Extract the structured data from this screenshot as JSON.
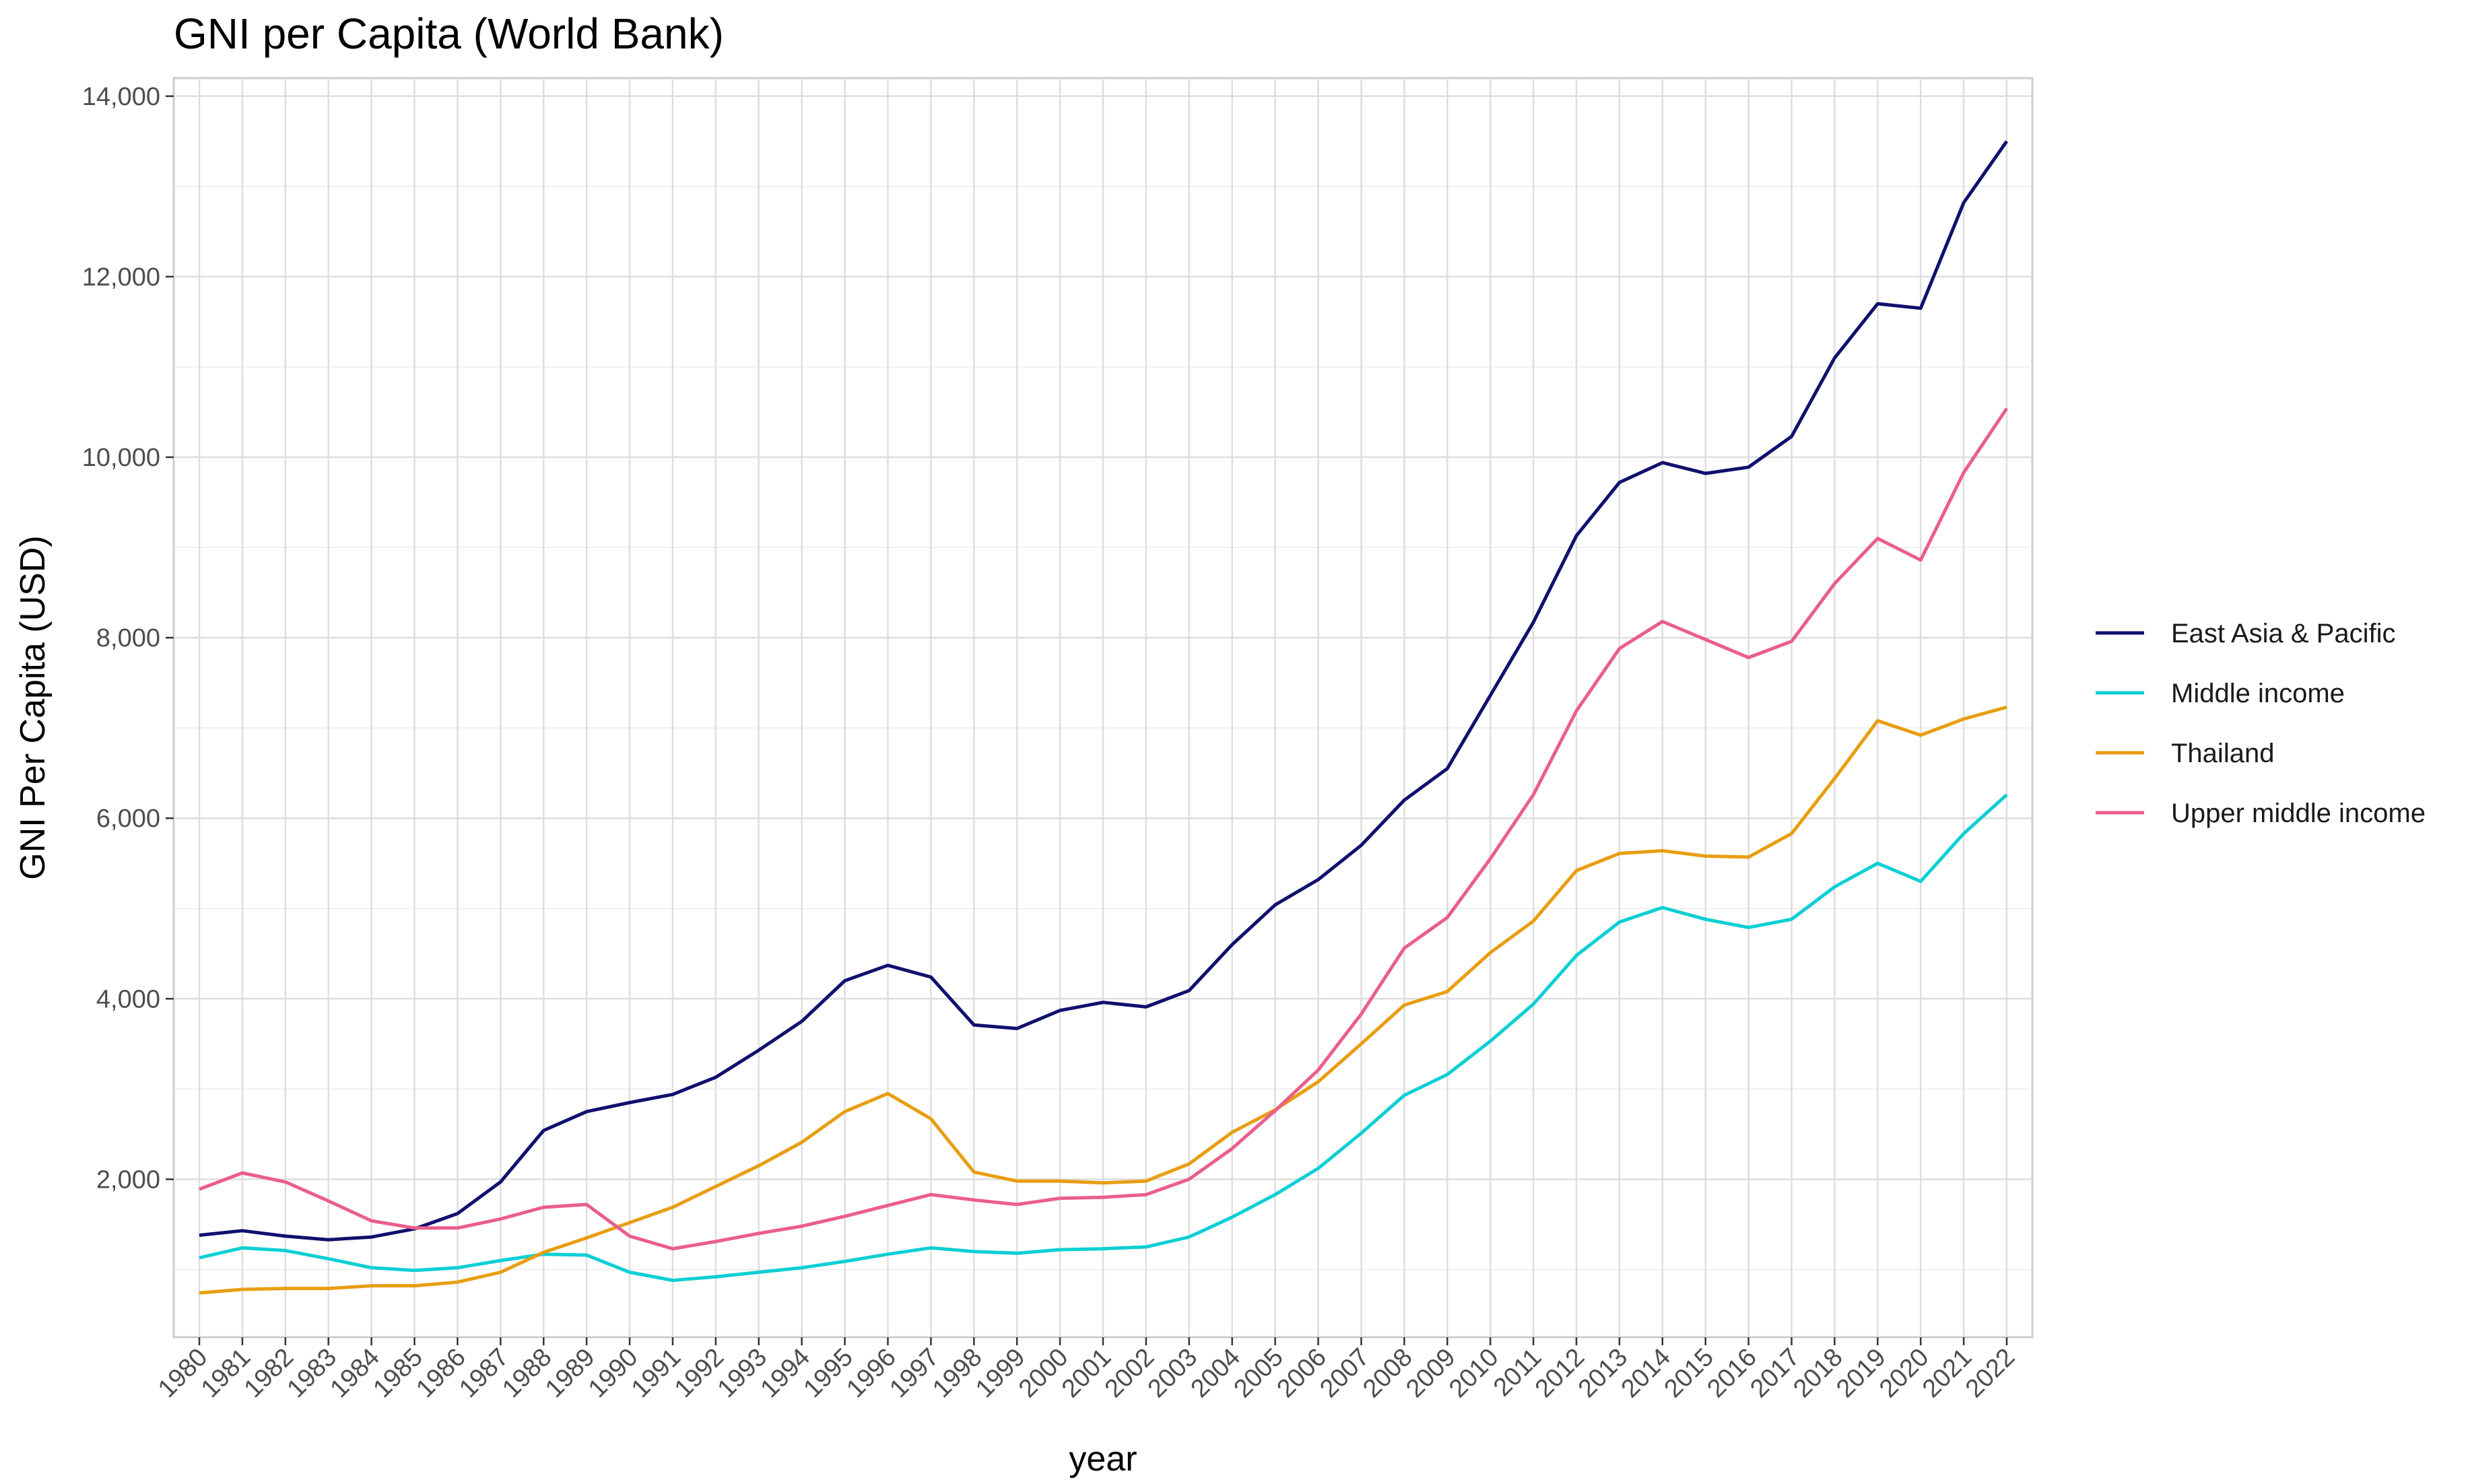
{
  "chart_data": {
    "type": "line",
    "title": "GNI per Capita (World Bank)",
    "xlabel": "year",
    "ylabel": "GNI Per Capita (USD)",
    "ylim": [
      250,
      14200
    ],
    "yticks": [
      2000,
      4000,
      6000,
      8000,
      10000,
      12000,
      14000
    ],
    "ytick_labels": [
      "2,000",
      "4,000",
      "6,000",
      "8,000",
      "10,000",
      "12,000",
      "14,000"
    ],
    "grid": true,
    "legend_position": "right",
    "x": [
      "1980",
      "1981",
      "1982",
      "1983",
      "1984",
      "1985",
      "1986",
      "1987",
      "1988",
      "1989",
      "1990",
      "1991",
      "1992",
      "1993",
      "1994",
      "1995",
      "1996",
      "1997",
      "1998",
      "1999",
      "2000",
      "2001",
      "2002",
      "2003",
      "2004",
      "2005",
      "2006",
      "2007",
      "2008",
      "2009",
      "2010",
      "2011",
      "2012",
      "2013",
      "2014",
      "2015",
      "2016",
      "2017",
      "2018",
      "2019",
      "2020",
      "2021",
      "2022"
    ],
    "series": [
      {
        "name": "East Asia & Pacific",
        "color": "#10106e",
        "values": [
          1380,
          1430,
          1370,
          1330,
          1360,
          1450,
          1620,
          1970,
          2540,
          2750,
          2850,
          2940,
          3130,
          3430,
          3750,
          4200,
          4370,
          4240,
          3710,
          3670,
          3870,
          3960,
          3910,
          4090,
          4600,
          5040,
          5320,
          5700,
          6200,
          6550,
          7360,
          8170,
          9130,
          9720,
          9940,
          9820,
          9890,
          10230,
          11100,
          11700,
          11650,
          12820,
          13500
        ]
      },
      {
        "name": "Middle income",
        "color": "#0dcfd4",
        "values": [
          1130,
          1240,
          1210,
          1120,
          1020,
          990,
          1020,
          1100,
          1170,
          1160,
          970,
          880,
          920,
          970,
          1020,
          1090,
          1170,
          1240,
          1200,
          1180,
          1220,
          1230,
          1250,
          1360,
          1580,
          1830,
          2120,
          2510,
          2930,
          3160,
          3530,
          3940,
          4480,
          4850,
          5010,
          4880,
          4790,
          4880,
          5240,
          5500,
          5300,
          5830,
          6260
        ]
      },
      {
        "name": "Thailand",
        "color": "#e89e12",
        "values": [
          740,
          780,
          790,
          790,
          820,
          820,
          860,
          970,
          1190,
          1350,
          1520,
          1690,
          1920,
          2150,
          2410,
          2750,
          2950,
          2670,
          2080,
          1980,
          1980,
          1960,
          1980,
          2170,
          2520,
          2770,
          3080,
          3500,
          3930,
          4080,
          4510,
          4860,
          5420,
          5610,
          5640,
          5580,
          5570,
          5830,
          6440,
          7080,
          6920,
          7100,
          7230
        ]
      },
      {
        "name": "Upper middle income",
        "color": "#ea5e8c",
        "values": [
          1890,
          2070,
          1970,
          1760,
          1540,
          1460,
          1460,
          1560,
          1690,
          1720,
          1370,
          1230,
          1310,
          1400,
          1480,
          1590,
          1710,
          1830,
          1770,
          1720,
          1790,
          1800,
          1830,
          2000,
          2340,
          2760,
          3210,
          3830,
          4560,
          4900,
          5550,
          6260,
          7190,
          7880,
          8180,
          7980,
          7780,
          7960,
          8600,
          9100,
          8860,
          9830,
          10540
        ]
      }
    ]
  }
}
